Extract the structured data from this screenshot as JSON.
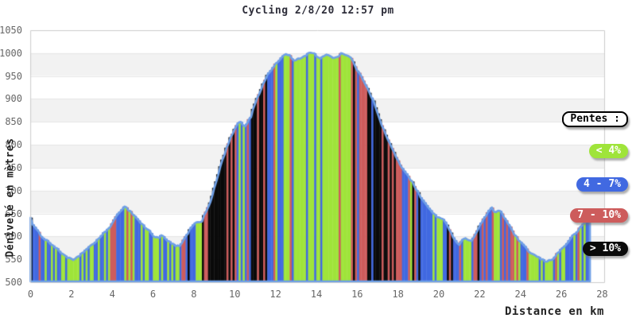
{
  "title": "Cycling 2/8/20 12:57 pm",
  "axes": {
    "x_label": "Distance en km",
    "y_label": "Dénivelé en mètres",
    "x_ticks": [
      0,
      2,
      4,
      6,
      8,
      10,
      12,
      14,
      16,
      18,
      20,
      22,
      24,
      26,
      28
    ],
    "y_ticks": [
      1050,
      1000,
      950,
      900,
      850,
      800,
      750,
      700,
      650,
      600,
      550,
      500
    ]
  },
  "legend": {
    "title": "Pentes :",
    "items": [
      {
        "label": "< 4%",
        "color": "#9fe43a",
        "slope_range_pct": "<4"
      },
      {
        "label": "4 - 7%",
        "color": "#4169e1",
        "slope_range_pct": "4-7"
      },
      {
        "label": "7 - 10%",
        "color": "#cd5c5c",
        "slope_range_pct": "7-10"
      },
      {
        "label": "> 10%",
        "color": "#0a0a0a",
        "slope_range_pct": ">10"
      }
    ]
  },
  "chart_data": {
    "type": "area",
    "title": "Cycling 2/8/20 12:57 pm",
    "xlabel": "Distance en km",
    "ylabel": "Dénivelé en mètres",
    "xlim": [
      0,
      28.1
    ],
    "ylim": [
      500,
      1050
    ],
    "grid": "horizontal-bands",
    "band_colors": [
      "#ffffff",
      "#f2f2f2"
    ],
    "line_color": "#6fa0e6",
    "slope_thresholds_pct": [
      4,
      7,
      10
    ],
    "slope_colors": [
      "#9fe43a",
      "#4169e1",
      "#cd5c5c",
      "#0a0a0a"
    ],
    "end_km": 27.4,
    "sample_step_km": 0.1,
    "profile": [
      [
        0,
        641
      ],
      [
        0.1,
        628
      ],
      [
        0.25,
        616
      ],
      [
        0.45,
        605
      ],
      [
        0.7,
        594
      ],
      [
        0.95,
        586
      ],
      [
        1.2,
        576
      ],
      [
        1.45,
        566
      ],
      [
        1.7,
        558
      ],
      [
        1.95,
        550
      ],
      [
        2.15,
        548
      ],
      [
        2.35,
        556
      ],
      [
        2.55,
        565
      ],
      [
        2.75,
        572
      ],
      [
        3,
        580
      ],
      [
        3.25,
        592
      ],
      [
        3.5,
        602
      ],
      [
        3.75,
        614
      ],
      [
        4,
        628
      ],
      [
        4.2,
        642
      ],
      [
        4.4,
        656
      ],
      [
        4.6,
        666
      ],
      [
        4.75,
        660
      ],
      [
        4.95,
        652
      ],
      [
        5.15,
        642
      ],
      [
        5.35,
        632
      ],
      [
        5.6,
        620
      ],
      [
        5.85,
        610
      ],
      [
        6.05,
        600
      ],
      [
        6.25,
        597
      ],
      [
        6.45,
        602
      ],
      [
        6.65,
        592
      ],
      [
        6.9,
        584
      ],
      [
        7.1,
        580
      ],
      [
        7.35,
        578
      ],
      [
        7.6,
        600
      ],
      [
        7.9,
        622
      ],
      [
        8.1,
        632
      ],
      [
        8.35,
        628
      ],
      [
        8.6,
        655
      ],
      [
        8.85,
        680
      ],
      [
        9.1,
        720
      ],
      [
        9.35,
        760
      ],
      [
        9.6,
        792
      ],
      [
        9.85,
        820
      ],
      [
        10.1,
        842
      ],
      [
        10.3,
        852
      ],
      [
        10.45,
        836
      ],
      [
        10.6,
        846
      ],
      [
        10.8,
        862
      ],
      [
        11.05,
        898
      ],
      [
        11.3,
        922
      ],
      [
        11.55,
        948
      ],
      [
        11.8,
        965
      ],
      [
        12,
        975
      ],
      [
        12.2,
        985
      ],
      [
        12.4,
        995
      ],
      [
        12.55,
        999
      ],
      [
        12.7,
        994
      ],
      [
        12.9,
        983
      ],
      [
        13.1,
        986
      ],
      [
        13.35,
        992
      ],
      [
        13.6,
        999
      ],
      [
        13.8,
        1002
      ],
      [
        14,
        994
      ],
      [
        14.2,
        989
      ],
      [
        14.45,
        994
      ],
      [
        14.65,
        997
      ],
      [
        14.85,
        988
      ],
      [
        15.05,
        993
      ],
      [
        15.25,
        1001
      ],
      [
        15.5,
        995
      ],
      [
        15.7,
        989
      ],
      [
        15.9,
        972
      ],
      [
        16.1,
        955
      ],
      [
        16.35,
        938
      ],
      [
        16.6,
        915
      ],
      [
        16.8,
        895
      ],
      [
        17,
        868
      ],
      [
        17.2,
        842
      ],
      [
        17.45,
        818
      ],
      [
        17.7,
        792
      ],
      [
        17.95,
        768
      ],
      [
        18.2,
        750
      ],
      [
        18.45,
        736
      ],
      [
        18.7,
        718
      ],
      [
        18.95,
        698
      ],
      [
        19.2,
        680
      ],
      [
        19.45,
        664
      ],
      [
        19.7,
        652
      ],
      [
        19.95,
        642
      ],
      [
        20.2,
        636
      ],
      [
        20.45,
        622
      ],
      [
        20.7,
        600
      ],
      [
        20.95,
        580
      ],
      [
        21.1,
        590
      ],
      [
        21.3,
        598
      ],
      [
        21.45,
        588
      ],
      [
        21.6,
        592
      ],
      [
        21.8,
        606
      ],
      [
        22,
        622
      ],
      [
        22.2,
        638
      ],
      [
        22.4,
        652
      ],
      [
        22.6,
        661
      ],
      [
        22.75,
        652
      ],
      [
        22.95,
        658
      ],
      [
        23.1,
        650
      ],
      [
        23.3,
        634
      ],
      [
        23.55,
        616
      ],
      [
        23.8,
        598
      ],
      [
        24.05,
        584
      ],
      [
        24.3,
        572
      ],
      [
        24.55,
        562
      ],
      [
        24.8,
        556
      ],
      [
        25.05,
        549
      ],
      [
        25.3,
        545
      ],
      [
        25.55,
        550
      ],
      [
        25.8,
        562
      ],
      [
        26.05,
        574
      ],
      [
        26.3,
        586
      ],
      [
        26.55,
        600
      ],
      [
        26.8,
        612
      ],
      [
        27,
        622
      ],
      [
        27.15,
        630
      ],
      [
        27.3,
        638
      ],
      [
        27.4,
        643
      ]
    ]
  }
}
